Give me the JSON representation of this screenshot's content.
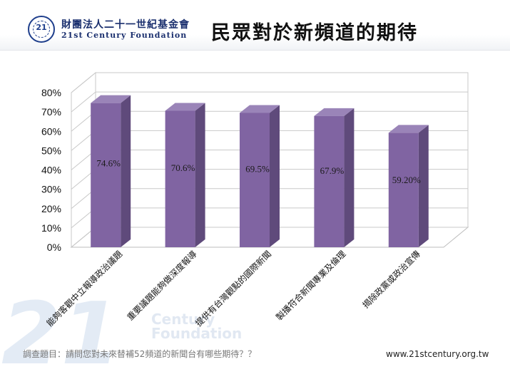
{
  "header": {
    "org_name_zh": "財團法人二十一世紀基金會",
    "org_name_en": "21st Century Foundation",
    "logo_mark": "21"
  },
  "title": "民眾對於新頻道的期待",
  "watermark": {
    "number": "21",
    "line1": "Century",
    "line2": "Foundation"
  },
  "footer": {
    "question": "調查題目：請問您對未來替補52頻道的新聞台有哪些期待？？",
    "url": "www.21stcentury.org.tw"
  },
  "colors": {
    "bar_front": "#8064a2",
    "bar_side": "#5f4a7b",
    "bar_top": "#9a84b8",
    "brand_blue": "#1a2f6e"
  },
  "chart_data": {
    "type": "bar",
    "title": "",
    "xlabel": "",
    "ylabel": "",
    "ylim": [
      0,
      0.8
    ],
    "y_ticks": [
      "0%",
      "10%",
      "20%",
      "30%",
      "40%",
      "50%",
      "60%",
      "70%",
      "80%"
    ],
    "grid": true,
    "three_d": true,
    "categories": [
      "能夠客觀中立報導政治議題",
      "重要議題能夠做深度報導",
      "提供有台灣觀點的國際新聞",
      "製播符合新聞專業及倫理",
      "揭除政黨或政治宣傳"
    ],
    "values": [
      0.746,
      0.706,
      0.695,
      0.679,
      0.592
    ],
    "value_labels": [
      "74.6%",
      "70.6%",
      "69.5%",
      "67.9%",
      "59.20%"
    ]
  }
}
